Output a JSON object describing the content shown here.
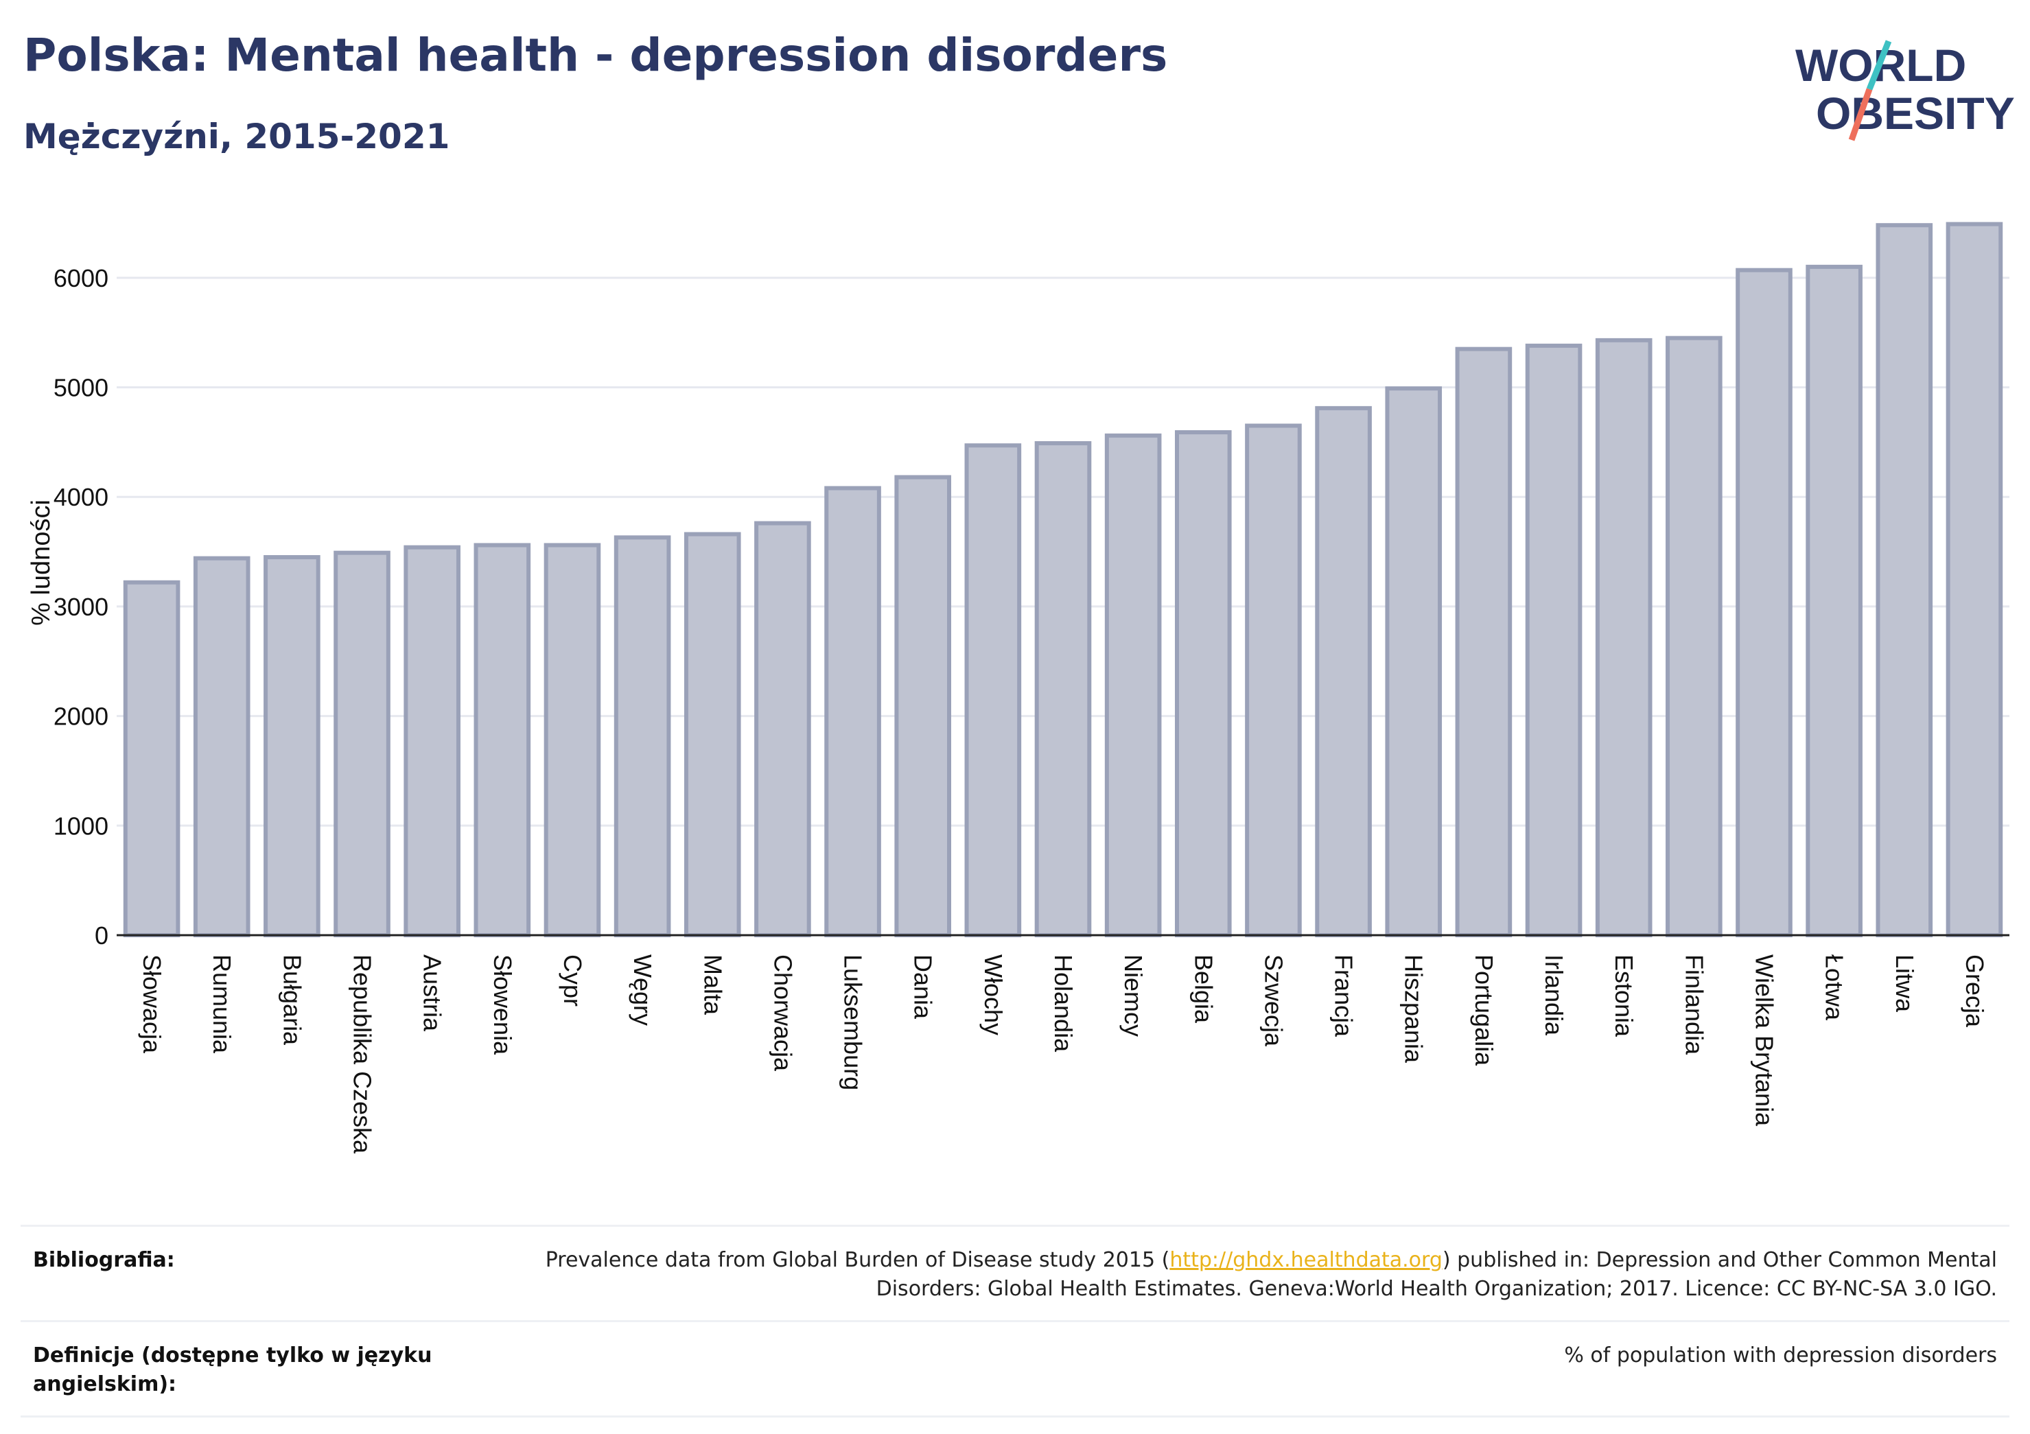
{
  "header": {
    "title": "Polska: Mental health - depression disorders",
    "subtitle": "Mężczyźni, 2015-2021"
  },
  "logo": {
    "line1": "WORLD",
    "line2": "OBESITY"
  },
  "chart_data": {
    "type": "bar",
    "ylabel": "% ludności",
    "xlabel": "",
    "ylim": [
      0,
      6500
    ],
    "yticks": [
      0,
      1000,
      2000,
      3000,
      4000,
      5000,
      6000
    ],
    "grid": true,
    "categories": [
      "Słowacja",
      "Rumunia",
      "Bułgaria",
      "Republika Czeska",
      "Austria",
      "Słowenia",
      "Cypr",
      "Węgry",
      "Malta",
      "Chorwacja",
      "Luksemburg",
      "Dania",
      "Włochy",
      "Holandia",
      "Niemcy",
      "Belgia",
      "Szwecja",
      "Francja",
      "Hiszpania",
      "Portugalia",
      "Irlandia",
      "Estonia",
      "Finlandia",
      "Wielka Brytania",
      "Łotwa",
      "Litwa",
      "Grecja"
    ],
    "values": [
      3220,
      3440,
      3450,
      3490,
      3540,
      3560,
      3560,
      3630,
      3660,
      3760,
      4080,
      4180,
      4470,
      4490,
      4560,
      4590,
      4650,
      4810,
      4990,
      5350,
      5380,
      5430,
      5450,
      6070,
      6100,
      6480,
      6490
    ],
    "bar_color": "#bfc3d1",
    "bar_stroke": "#9aa1b8"
  },
  "footer": {
    "bib_label": "Bibliografia:",
    "bib_pre": "Prevalence data from Global Burden of Disease study 2015 (",
    "bib_link": "http://ghdx.healthdata.org",
    "bib_post": ") published in: Depression and Other Common Mental Disorders: Global Health Estimates. Geneva:World Health Organization; 2017. Licence: CC BY-NC-SA 3.0 IGO.",
    "def_label": "Definicje (dostępne tylko w języku angielskim):",
    "def_value": "% of population with depression disorders"
  }
}
